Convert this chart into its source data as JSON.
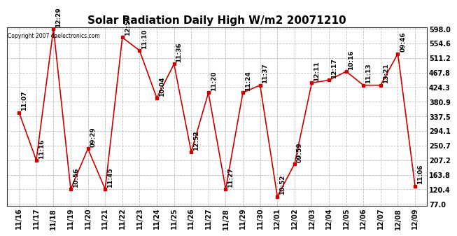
{
  "title": "Solar Radiation Daily High W/m2 20071210",
  "copyright": "Copyright 2007 daelectronics.com",
  "dates": [
    "11/16",
    "11/17",
    "11/18",
    "11/19",
    "11/20",
    "11/21",
    "11/22",
    "11/23",
    "11/24",
    "11/25",
    "11/26",
    "11/27",
    "11/28",
    "11/29",
    "11/30",
    "12/01",
    "12/02",
    "12/03",
    "12/04",
    "12/05",
    "12/06",
    "12/07",
    "12/08",
    "12/09"
  ],
  "values": [
    349,
    207,
    598,
    121,
    241,
    121,
    572,
    533,
    392,
    493,
    232,
    408,
    121,
    408,
    430,
    99,
    196,
    437,
    445,
    471,
    430,
    430,
    524,
    130
  ],
  "time_labels": [
    "11:07",
    "11:16",
    "12:29",
    "10:56",
    "09:29",
    "11:45",
    "12:57",
    "11:10",
    "10:04",
    "11:36",
    "12:52",
    "11:20",
    "11:27",
    "11:24",
    "11:37",
    "10:52",
    "09:59",
    "12:11",
    "12:17",
    "10:16",
    "11:13",
    "13:21",
    "09:46",
    "11:06"
  ],
  "ylim": [
    77.0,
    598.0
  ],
  "yticks": [
    77.0,
    120.4,
    163.8,
    207.2,
    250.7,
    294.1,
    337.5,
    380.9,
    424.3,
    467.8,
    511.2,
    554.6,
    598.0
  ],
  "line_color": "#cc0000",
  "marker_color": "#cc0000",
  "bg_color": "#ffffff",
  "grid_color": "#c0c0c0",
  "title_fontsize": 11,
  "tick_fontsize": 7,
  "annot_fontsize": 6.5
}
